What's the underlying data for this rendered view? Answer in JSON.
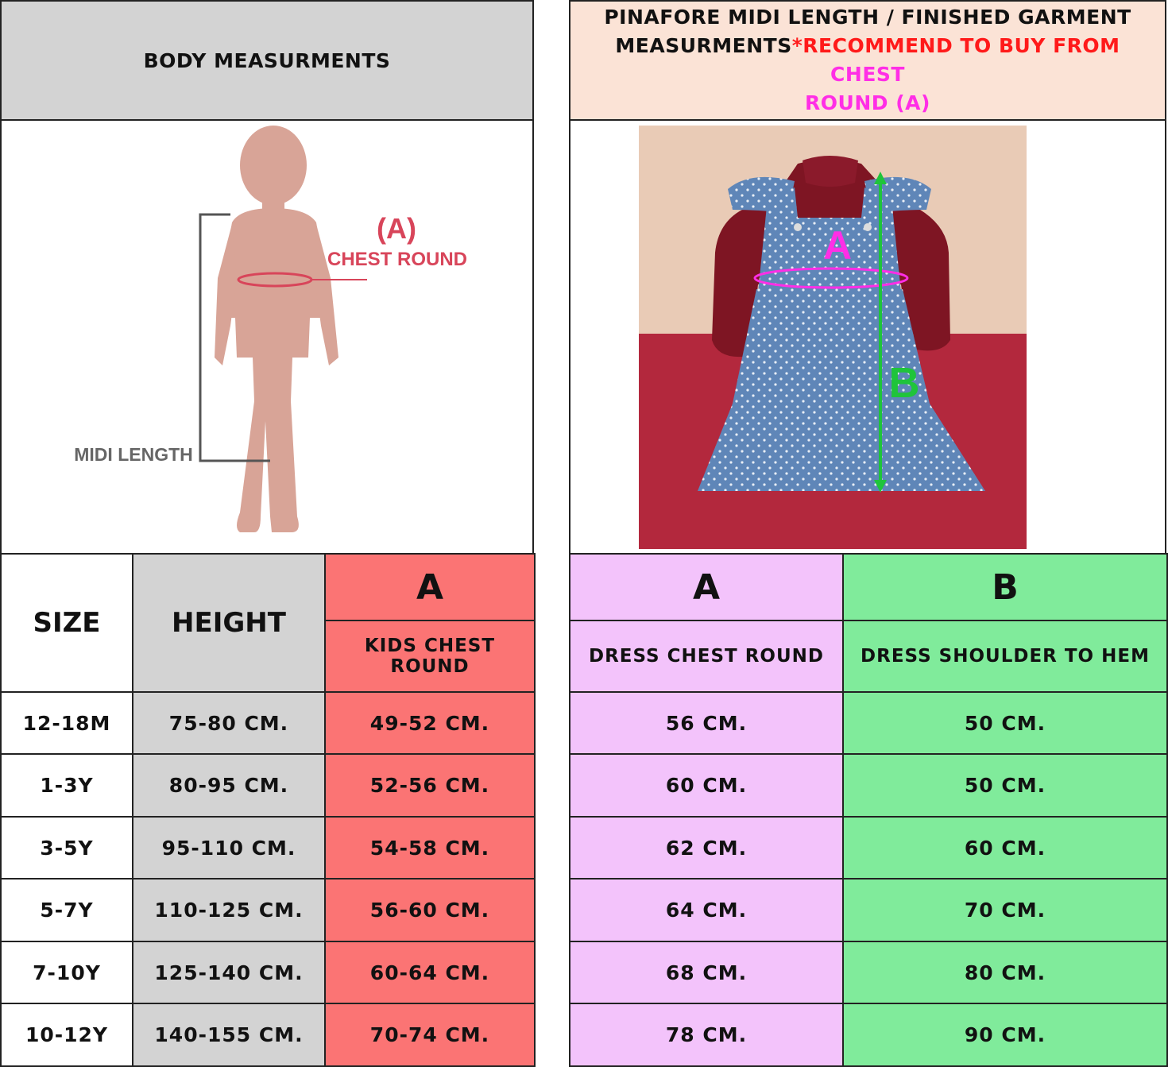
{
  "left_panel": {
    "header": "BODY MEASURMENTS",
    "figure": {
      "label_a": "(A)",
      "label_chest": "CHEST ROUND",
      "label_length": "MIDI LENGTH",
      "colors": {
        "silhouette": "#d8a497",
        "label": "#d8455a",
        "length_label": "#666666"
      }
    },
    "table": {
      "size_header": "SIZE",
      "height_header": "HEIGHT",
      "a_header": "A",
      "a_subheader": "KIDS CHEST ROUND",
      "rows": [
        {
          "size": "12-18M",
          "height": "75-80 CM.",
          "chest": "49-52 CM."
        },
        {
          "size": "1-3Y",
          "height": "80-95 CM.",
          "chest": "52-56 CM."
        },
        {
          "size": "3-5Y",
          "height": "95-110 CM.",
          "chest": "54-58 CM."
        },
        {
          "size": "5-7Y",
          "height": "110-125 CM.",
          "chest": "56-60 CM."
        },
        {
          "size": "7-10Y",
          "height": "125-140 CM.",
          "chest": "60-64  CM."
        },
        {
          "size": "10-12Y",
          "height": "140-155 CM.",
          "chest": "70-74 CM."
        }
      ]
    }
  },
  "right_panel": {
    "header": {
      "line1": "PINAFORE MIDI LENGTH / FINISHED GARMENT",
      "line2_black": "MEASURMENTS",
      "line2_red": "*RECOMMEND TO BUY FROM ",
      "line2_magenta": "CHEST",
      "line3_magenta": "ROUND (A)",
      "colors": {
        "bg": "#fbe3d6",
        "red": "#ff1a1a",
        "magenta": "#ff2ee6"
      }
    },
    "photo": {
      "label_a": "A",
      "label_b": "B"
    },
    "table": {
      "a_header": "A",
      "a_subheader": "DRESS CHEST ROUND",
      "b_header": "B",
      "b_subheader": "DRESS SHOULDER TO HEM",
      "rows": [
        {
          "chest": "56 CM.",
          "length": "50 CM."
        },
        {
          "chest": "60 CM.",
          "length": "50 CM."
        },
        {
          "chest": "62 CM.",
          "length": "60 CM."
        },
        {
          "chest": "64 CM.",
          "length": "70 CM."
        },
        {
          "chest": "68 CM.",
          "length": "80 CM."
        },
        {
          "chest": "78 CM.",
          "length": "90 CM."
        }
      ]
    }
  }
}
